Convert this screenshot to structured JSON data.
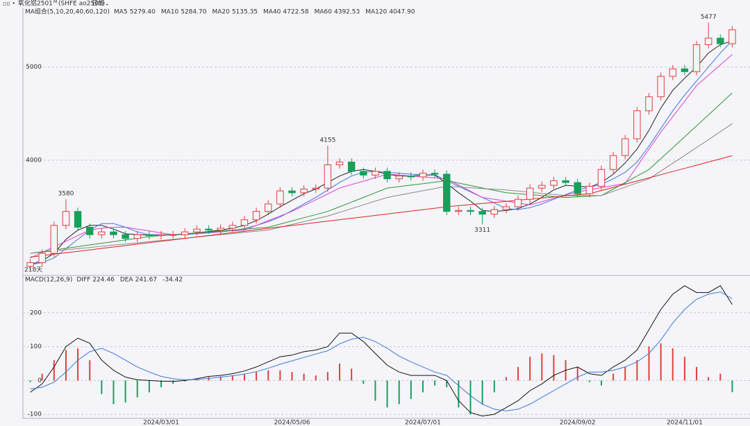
{
  "header": {
    "symbol": "氧化铝2501",
    "symbol_mark": "M",
    "code": "(SHFE ao2501)",
    "period": "日线"
  },
  "chart_data": [
    {
      "type": "candlestick",
      "legend_title": "MA组合(5,10,20,40,60,120)",
      "day_count_label": "218天",
      "ylim": [
        2770,
        5630
      ],
      "yticks": [
        4000,
        5000
      ],
      "up_color": "#e0403a",
      "down_color": "#16a05a",
      "open": [
        2860,
        2900,
        3000,
        3300,
        3450,
        3280,
        3200,
        3230,
        3200,
        3160,
        3200,
        3190,
        3200,
        3200,
        3230,
        3260,
        3250,
        3270,
        3300,
        3360,
        3450,
        3530,
        3670,
        3650,
        3690,
        3700,
        3950,
        3980,
        3880,
        3840,
        3880,
        3800,
        3830,
        3820,
        3860,
        3850,
        3450,
        3460,
        3450,
        3420,
        3470,
        3500,
        3580,
        3700,
        3730,
        3780,
        3760,
        3640,
        3720,
        3900,
        4050,
        4230,
        4530,
        4680,
        4900,
        4980,
        4950,
        5240,
        5310,
        5250
      ],
      "high": [
        2940,
        3040,
        3340,
        3580,
        3490,
        3320,
        3270,
        3270,
        3240,
        3240,
        3240,
        3240,
        3240,
        3270,
        3300,
        3300,
        3310,
        3340,
        3400,
        3490,
        3570,
        3710,
        3710,
        3730,
        3740,
        4155,
        4020,
        4020,
        3920,
        3920,
        3920,
        3870,
        3870,
        3900,
        3900,
        3890,
        3500,
        3500,
        3490,
        3510,
        3540,
        3620,
        3740,
        3770,
        3820,
        3820,
        3800,
        3760,
        3940,
        4090,
        4270,
        4570,
        4720,
        4940,
        5020,
        5020,
        5280,
        5477,
        5350,
        5440
      ],
      "low": [
        2820,
        2860,
        2960,
        3260,
        3240,
        3160,
        3160,
        3160,
        3120,
        3120,
        3150,
        3150,
        3160,
        3160,
        3190,
        3210,
        3210,
        3230,
        3260,
        3320,
        3410,
        3490,
        3610,
        3610,
        3650,
        3660,
        3910,
        3840,
        3800,
        3800,
        3760,
        3760,
        3780,
        3780,
        3810,
        3410,
        3410,
        3410,
        3311,
        3380,
        3430,
        3460,
        3540,
        3660,
        3690,
        3720,
        3600,
        3600,
        3680,
        3860,
        4010,
        4190,
        4490,
        4640,
        4860,
        4910,
        4910,
        5200,
        5210,
        5210
      ],
      "close": [
        2900,
        3000,
        3300,
        3450,
        3280,
        3200,
        3230,
        3200,
        3160,
        3200,
        3190,
        3200,
        3200,
        3230,
        3260,
        3250,
        3270,
        3300,
        3360,
        3450,
        3530,
        3670,
        3650,
        3690,
        3700,
        3950,
        3980,
        3880,
        3840,
        3880,
        3800,
        3830,
        3820,
        3860,
        3850,
        3450,
        3460,
        3450,
        3420,
        3470,
        3500,
        3580,
        3700,
        3730,
        3780,
        3760,
        3640,
        3720,
        3900,
        4050,
        4230,
        4530,
        4680,
        4900,
        4980,
        4950,
        5240,
        5310,
        5250,
        5400
      ],
      "annotations": [
        {
          "index": 3,
          "value": 3580,
          "position": "above"
        },
        {
          "index": 25,
          "value": 4155,
          "position": "above"
        },
        {
          "index": 38,
          "value": 3311,
          "position": "below"
        },
        {
          "index": 57,
          "value": 5477,
          "position": "above"
        }
      ],
      "series": [
        {
          "name": "MA5",
          "value_label": "5279.40",
          "color": "#222222",
          "values": [
            2880,
            2920,
            3000,
            3150,
            3250,
            3300,
            3300,
            3260,
            3210,
            3200,
            3195,
            3195,
            3200,
            3205,
            3220,
            3235,
            3250,
            3270,
            3300,
            3350,
            3420,
            3500,
            3570,
            3640,
            3690,
            3760,
            3830,
            3880,
            3900,
            3880,
            3850,
            3830,
            3830,
            3840,
            3840,
            3750,
            3650,
            3560,
            3460,
            3450,
            3460,
            3480,
            3530,
            3600,
            3680,
            3730,
            3720,
            3710,
            3760,
            3850,
            3970,
            4120,
            4320,
            4560,
            4750,
            4880,
            5000,
            5150,
            5240,
            5279
          ]
        },
        {
          "name": "MA10",
          "value_label": "5284.70",
          "color": "#3a78d8",
          "values": [
            2880,
            2900,
            2950,
            3050,
            3150,
            3250,
            3320,
            3320,
            3280,
            3230,
            3200,
            3200,
            3200,
            3200,
            3210,
            3220,
            3230,
            3245,
            3265,
            3300,
            3340,
            3390,
            3460,
            3530,
            3600,
            3680,
            3760,
            3830,
            3870,
            3880,
            3870,
            3860,
            3850,
            3845,
            3845,
            3780,
            3720,
            3660,
            3600,
            3540,
            3480,
            3470,
            3490,
            3530,
            3580,
            3630,
            3680,
            3710,
            3740,
            3800,
            3870,
            3980,
            4150,
            4340,
            4530,
            4700,
            4850,
            5000,
            5150,
            5284
          ]
        },
        {
          "name": "MA20",
          "value_label": "5135.35",
          "color": "#e040d0",
          "values": [
            2950,
            3010,
            3070,
            3130,
            3190,
            3250,
            3270,
            3280,
            3280,
            3260,
            3240,
            3220,
            3200,
            3208,
            3217,
            3225,
            3233,
            3242,
            3250,
            3300,
            3350,
            3400,
            3450,
            3512,
            3575,
            3638,
            3700,
            3738,
            3775,
            3812,
            3850,
            3840,
            3830,
            3820,
            3810,
            3800,
            3733,
            3667,
            3600,
            3580,
            3560,
            3540,
            3520,
            3555,
            3590,
            3625,
            3660,
            3682,
            3705,
            3728,
            3750,
            3933,
            4117,
            4300,
            4467,
            4633,
            4800,
            4912,
            5023,
            5135
          ]
        },
        {
          "name": "MA40",
          "value_label": "4722.58",
          "color": "#2a9a2a",
          "values": [
            3000,
            3018,
            3036,
            3054,
            3072,
            3090,
            3108,
            3126,
            3144,
            3162,
            3180,
            3190,
            3200,
            3210,
            3220,
            3230,
            3240,
            3250,
            3260,
            3270,
            3280,
            3314,
            3348,
            3382,
            3416,
            3450,
            3500,
            3550,
            3600,
            3650,
            3700,
            3716,
            3732,
            3748,
            3764,
            3780,
            3754,
            3728,
            3702,
            3676,
            3650,
            3640,
            3630,
            3620,
            3610,
            3600,
            3607,
            3613,
            3620,
            3690,
            3760,
            3830,
            3900,
            4017,
            4133,
            4250,
            4368,
            4486,
            4604,
            4722
          ]
        },
        {
          "name": "MA60",
          "value_label": "4392.53",
          "color": "#8a8a8a",
          "values": [
            3000,
            3012,
            3025,
            3038,
            3050,
            3062,
            3075,
            3088,
            3100,
            3112,
            3125,
            3138,
            3150,
            3162,
            3175,
            3188,
            3200,
            3212,
            3225,
            3238,
            3250,
            3280,
            3310,
            3340,
            3370,
            3400,
            3440,
            3480,
            3520,
            3560,
            3600,
            3624,
            3648,
            3672,
            3696,
            3720,
            3712,
            3704,
            3696,
            3688,
            3680,
            3668,
            3656,
            3644,
            3632,
            3620,
            3620,
            3620,
            3620,
            3665,
            3710,
            3755,
            3800,
            3883,
            3967,
            4050,
            4135,
            4220,
            4306,
            4392
          ]
        },
        {
          "name": "MA120",
          "value_label": "4047.90",
          "color": "#e02020",
          "values": [
            2960,
            2975,
            2991,
            3006,
            3022,
            3037,
            3053,
            3068,
            3083,
            3099,
            3114,
            3130,
            3145,
            3160,
            3176,
            3191,
            3207,
            3222,
            3237,
            3253,
            3268,
            3284,
            3299,
            3314,
            3330,
            3345,
            3361,
            3376,
            3391,
            3407,
            3422,
            3438,
            3453,
            3468,
            3484,
            3500,
            3512,
            3523,
            3535,
            3547,
            3558,
            3570,
            3582,
            3593,
            3605,
            3617,
            3628,
            3640,
            3674,
            3708,
            3742,
            3776,
            3810,
            3844,
            3878,
            3912,
            3946,
            3980,
            4014,
            4048
          ]
        }
      ]
    },
    {
      "type": "macd",
      "title": "MACD(12,26,9)",
      "ylim": [
        -112,
        294
      ],
      "yticks": [
        -100,
        0,
        100,
        200
      ],
      "x_labels": [
        {
          "index": 11,
          "label": "2024/03/01"
        },
        {
          "index": 22,
          "label": "2024/05/06"
        },
        {
          "index": 33,
          "label": "2024/07/01"
        },
        {
          "index": 46,
          "label": "2024/09/02"
        },
        {
          "index": 55,
          "label": "2024/11/01"
        }
      ],
      "series": [
        {
          "name": "DIFF",
          "value_label": "224.46",
          "color": "#111111",
          "values": [
            -35,
            -10,
            40,
            100,
            125,
            110,
            60,
            30,
            10,
            2,
            0,
            -2,
            -3,
            0,
            5,
            12,
            15,
            20,
            28,
            40,
            55,
            70,
            75,
            85,
            90,
            100,
            140,
            140,
            115,
            80,
            45,
            25,
            15,
            15,
            15,
            0,
            -60,
            -95,
            -105,
            -100,
            -80,
            -60,
            -30,
            -10,
            15,
            30,
            40,
            20,
            15,
            40,
            60,
            90,
            150,
            210,
            255,
            280,
            260,
            260,
            280,
            224.46
          ]
        },
        {
          "name": "DEA",
          "value_label": "241.67",
          "color": "#3a78d8",
          "values": [
            -25,
            -20,
            -5,
            25,
            60,
            85,
            95,
            80,
            60,
            40,
            25,
            12,
            5,
            2,
            3,
            6,
            10,
            14,
            19,
            26,
            36,
            48,
            58,
            68,
            78,
            88,
            108,
            122,
            128,
            115,
            95,
            72,
            55,
            40,
            25,
            15,
            -15,
            -45,
            -70,
            -85,
            -90,
            -85,
            -70,
            -50,
            -30,
            -10,
            10,
            25,
            25,
            30,
            40,
            55,
            80,
            120,
            170,
            210,
            240,
            255,
            262,
            241.67
          ]
        }
      ],
      "histogram": {
        "value_label": "-34.42",
        "up_color": "#e0403a",
        "down_color": "#16a05a",
        "values": [
          -5,
          20,
          60,
          90,
          95,
          60,
          -40,
          -70,
          -65,
          -50,
          -35,
          -20,
          -10,
          -3,
          5,
          10,
          12,
          15,
          18,
          25,
          30,
          30,
          25,
          20,
          15,
          25,
          50,
          35,
          -10,
          -60,
          -80,
          -70,
          -55,
          -35,
          -15,
          -20,
          -80,
          -100,
          -70,
          -35,
          10,
          40,
          70,
          80,
          75,
          60,
          40,
          -5,
          -15,
          20,
          40,
          60,
          100,
          110,
          95,
          70,
          40,
          10,
          20,
          -34.42
        ]
      }
    }
  ]
}
